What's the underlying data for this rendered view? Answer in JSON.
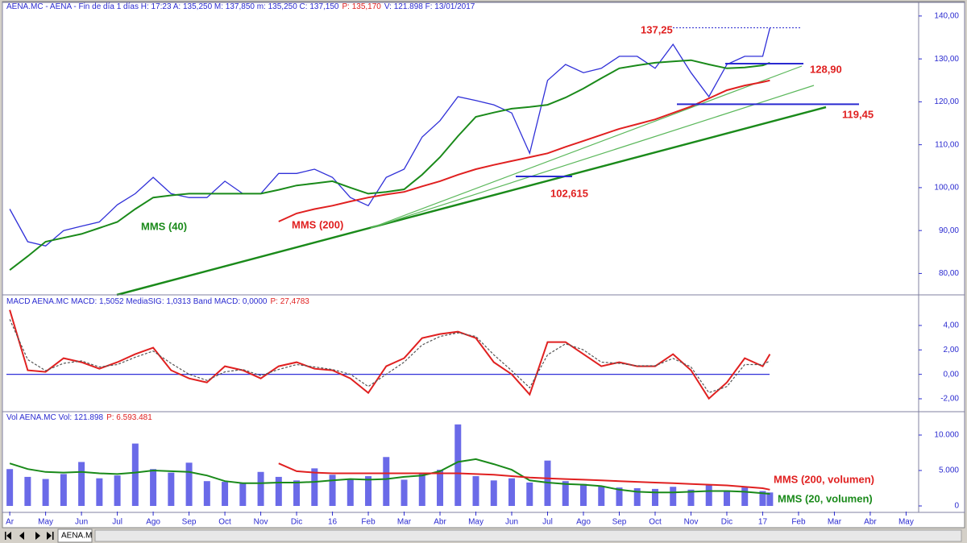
{
  "chart_data": [
    {
      "type": "line",
      "header": [
        {
          "text": "AENA.MC - AENA - Fin de día 1 días H: 17:23 A: 135,250 M: 137,850 m: 135,250 C: 137,150",
          "color": "#2a2ad0"
        },
        {
          "text": "P: 135,170",
          "color": "#e02020"
        },
        {
          "text": "V: 121.898 F: 13/01/2017",
          "color": "#2a2ad0"
        }
      ],
      "xlim": [
        -0.16,
        25.35
      ],
      "x": [
        0,
        0.5,
        1,
        1.5,
        2,
        2.5,
        3,
        3.5,
        4,
        4.5,
        5,
        5.5,
        6,
        6.5,
        7,
        7.5,
        8,
        8.5,
        9,
        9.5,
        10,
        10.5,
        11,
        11.5,
        12,
        12.5,
        13,
        13.5,
        14,
        14.5,
        15,
        15.5,
        16,
        16.5,
        17,
        17.5,
        18,
        18.5,
        19,
        19.5,
        20,
        20.5,
        21,
        21.2
      ],
      "ylim": [
        75.2,
        141.1
      ],
      "yticks": [
        {
          "value": 80,
          "label": "80,00"
        },
        {
          "value": 90,
          "label": "90,00"
        },
        {
          "value": 100,
          "label": "100,00"
        },
        {
          "value": 110,
          "label": "110,00"
        },
        {
          "value": 120,
          "label": "120,00"
        },
        {
          "value": 130,
          "label": "130,00"
        },
        {
          "value": 140,
          "label": "140,00"
        }
      ],
      "series": [
        {
          "color": "#3030d8",
          "values": [
            95,
            87.4,
            86.4,
            90,
            91,
            92,
            96,
            98.6,
            102.4,
            98.6,
            97.7,
            97.7,
            101.5,
            98.6,
            98.6,
            103.3,
            103.3,
            104.3,
            102.4,
            97.7,
            95.8,
            102.4,
            104.3,
            111.8,
            115.6,
            121.2,
            120.3,
            119.3,
            117.4,
            108,
            125,
            128.7,
            126.8,
            127.8,
            130.6,
            130.6,
            127.8,
            133.4,
            126.8,
            121.2,
            128.7,
            130.6,
            130.6,
            137.2
          ]
        },
        {
          "name": "MMS (40)",
          "color": "#1a8a1a",
          "values": [
            80.8,
            84,
            87.4,
            88.3,
            89.2,
            90.6,
            92,
            95,
            97.7,
            98.2,
            98.6,
            98.6,
            98.6,
            98.6,
            98.6,
            99.5,
            100.5,
            101,
            101.5,
            100,
            98.6,
            99,
            99.6,
            103,
            107.1,
            112,
            116.5,
            117.5,
            118.4,
            118.8,
            119.3,
            121,
            123.1,
            125.5,
            127.8,
            128.5,
            129.1,
            129.4,
            129.7,
            128.7,
            127.8,
            128,
            128.5,
            129.1
          ]
        },
        {
          "name": "MMS (200)",
          "color": "#e02020",
          "values": [
            null,
            null,
            null,
            null,
            null,
            null,
            null,
            null,
            null,
            null,
            null,
            null,
            null,
            null,
            null,
            92.1,
            94,
            95,
            95.8,
            96.8,
            97.7,
            98.4,
            99,
            100.3,
            101.5,
            103,
            104.3,
            105.3,
            106.2,
            107.1,
            108,
            109.5,
            110.9,
            112.3,
            113.7,
            114.8,
            115.9,
            117.4,
            118.9,
            120.8,
            122.7,
            123.8,
            124.6,
            125
          ]
        }
      ],
      "annotations": [
        {
          "value": 137.25,
          "label": "137,25"
        },
        {
          "value": 128.9,
          "label": "128,90"
        },
        {
          "value": 119.45,
          "label": "119,45"
        },
        {
          "value": 102.615,
          "label": "102,615"
        }
      ]
    },
    {
      "type": "line",
      "header": [
        {
          "text": "MACD AENA.MC MACD: 1,5052 MediaSIG: 1,0313 Band MACD: 0,0000",
          "color": "#2a2ad0"
        },
        {
          "text": "P: 27,4783",
          "color": "#e02020"
        }
      ],
      "xlim": [
        -0.16,
        25.35
      ],
      "x": [
        0,
        0.5,
        1,
        1.5,
        2,
        2.5,
        3,
        3.5,
        4,
        4.5,
        5,
        5.5,
        6,
        6.5,
        7,
        7.5,
        8,
        8.5,
        9,
        9.5,
        10,
        10.5,
        11,
        11.5,
        12,
        12.5,
        13,
        13.5,
        14,
        14.5,
        15,
        15.5,
        16,
        16.5,
        17,
        17.5,
        18,
        18.5,
        19,
        19.5,
        20,
        20.5,
        21,
        21.2
      ],
      "ylim": [
        -2.99,
        6.24
      ],
      "yticks": [
        {
          "value": -2,
          "label": "-2,00"
        },
        {
          "value": 0,
          "label": "0,00"
        },
        {
          "value": 2,
          "label": "2,00"
        },
        {
          "value": 4,
          "label": "4,00"
        }
      ],
      "series": [
        {
          "color": "#e02020",
          "values": [
            5.27,
            0.33,
            0.2,
            1.32,
            0.99,
            0.46,
            0.99,
            1.65,
            2.18,
            0.33,
            -0.33,
            -0.66,
            0.66,
            0.33,
            -0.33,
            0.66,
            0.99,
            0.46,
            0.33,
            -0.33,
            -1.52,
            0.66,
            1.32,
            2.97,
            3.3,
            3.49,
            2.97,
            0.99,
            0,
            -1.65,
            2.64,
            2.64,
            1.65,
            0.66,
            0.99,
            0.66,
            0.66,
            1.65,
            0.33,
            -1.98,
            -0.66,
            1.32,
            0.66,
            1.65
          ]
        },
        {
          "color": "#555555",
          "dash": true,
          "values": [
            4.5,
            1.2,
            0.3,
            0.9,
            1.1,
            0.6,
            0.8,
            1.4,
            1.9,
            0.9,
            0,
            -0.5,
            0.2,
            0.4,
            -0.1,
            0.4,
            0.8,
            0.6,
            0.4,
            0,
            -1,
            0,
            1,
            2.4,
            3.1,
            3.4,
            3.1,
            1.6,
            0.3,
            -1.1,
            1.6,
            2.5,
            2,
            1,
            0.9,
            0.7,
            0.7,
            1.3,
            0.6,
            -1.5,
            -1,
            0.8,
            0.8,
            1.1
          ]
        }
      ]
    },
    {
      "type": "bar",
      "header": [
        {
          "text": "Vol AENA.MC Vol: 121.898",
          "color": "#2a2ad0"
        },
        {
          "text": "P: 6.593.481",
          "color": "#e02020"
        }
      ],
      "xlim": [
        -0.16,
        25.35
      ],
      "x": [
        0,
        0.5,
        1,
        1.5,
        2,
        2.5,
        3,
        3.5,
        4,
        4.5,
        5,
        5.5,
        6,
        6.5,
        7,
        7.5,
        8,
        8.5,
        9,
        9.5,
        10,
        10.5,
        11,
        11.5,
        12,
        12.5,
        13,
        13.5,
        14,
        14.5,
        15,
        15.5,
        16,
        16.5,
        17,
        17.5,
        18,
        18.5,
        19,
        19.5,
        20,
        20.5,
        21,
        21.2
      ],
      "xticks": [
        {
          "value": 0,
          "label": "Ar"
        },
        {
          "value": 1,
          "label": "May"
        },
        {
          "value": 2,
          "label": "Jun"
        },
        {
          "value": 3,
          "label": "Jul"
        },
        {
          "value": 4,
          "label": "Ago"
        },
        {
          "value": 5,
          "label": "Sep"
        },
        {
          "value": 6,
          "label": "Oct"
        },
        {
          "value": 7,
          "label": "Nov"
        },
        {
          "value": 8,
          "label": "Dic"
        },
        {
          "value": 9,
          "label": "16"
        },
        {
          "value": 10,
          "label": "Feb"
        },
        {
          "value": 11,
          "label": "Mar"
        },
        {
          "value": 12,
          "label": "Abr"
        },
        {
          "value": 13,
          "label": "May"
        },
        {
          "value": 14,
          "label": "Jun"
        },
        {
          "value": 15,
          "label": "Jul"
        },
        {
          "value": 16,
          "label": "Ago"
        },
        {
          "value": 17,
          "label": "Sep"
        },
        {
          "value": 18,
          "label": "Oct"
        },
        {
          "value": 19,
          "label": "Nov"
        },
        {
          "value": 20,
          "label": "Dic"
        },
        {
          "value": 21,
          "label": "17"
        },
        {
          "value": 22,
          "label": "Feb"
        },
        {
          "value": 23,
          "label": "Mar"
        },
        {
          "value": 24,
          "label": "Abr"
        },
        {
          "value": 25,
          "label": "May"
        }
      ],
      "ylim": [
        -795,
        12841
      ],
      "yticks": [
        0,
        {
          "value": 5000,
          "label": "5.000"
        },
        {
          "value": 10000,
          "label": "10.000"
        }
      ],
      "series": [
        {
          "style": "bar",
          "color": "#6a6ae8",
          "values": [
            5200,
            4100,
            3800,
            4500,
            6200,
            3900,
            4300,
            8800,
            5200,
            4700,
            6100,
            3500,
            3400,
            3200,
            4800,
            4100,
            3600,
            5300,
            4400,
            3800,
            4200,
            6900,
            3700,
            4500,
            5100,
            11500,
            4200,
            3600,
            3900,
            3300,
            6400,
            3500,
            3100,
            2800,
            2600,
            2500,
            2400,
            2700,
            2300,
            2900,
            2200,
            2600,
            2100,
            1900
          ]
        },
        {
          "name": "MMS (20, volumen)",
          "color": "#1a8a1a",
          "values": [
            6000,
            5200,
            4800,
            4700,
            4800,
            4600,
            4500,
            4700,
            5000,
            4900,
            4800,
            4300,
            3500,
            3200,
            3200,
            3300,
            3300,
            3400,
            3600,
            3800,
            3700,
            3800,
            4100,
            4300,
            4900,
            6200,
            6600,
            5900,
            5100,
            3600,
            3300,
            3100,
            3000,
            2800,
            2300,
            2000,
            1900,
            1900,
            2000,
            2100,
            2100,
            2000,
            1800,
            1700
          ]
        },
        {
          "name": "MMS (200, volumen)",
          "color": "#e02020",
          "values": [
            null,
            null,
            null,
            null,
            null,
            null,
            null,
            null,
            null,
            null,
            null,
            null,
            null,
            null,
            null,
            6000,
            4900,
            4700,
            4600,
            4600,
            4600,
            4600,
            4600,
            4600,
            4600,
            4600,
            4500,
            4400,
            4200,
            4000,
            3900,
            3800,
            3700,
            3600,
            3500,
            3400,
            3300,
            3200,
            3100,
            3000,
            2900,
            2700,
            2500,
            2300
          ]
        }
      ]
    }
  ],
  "footer": {
    "tab": "AENA.M"
  }
}
